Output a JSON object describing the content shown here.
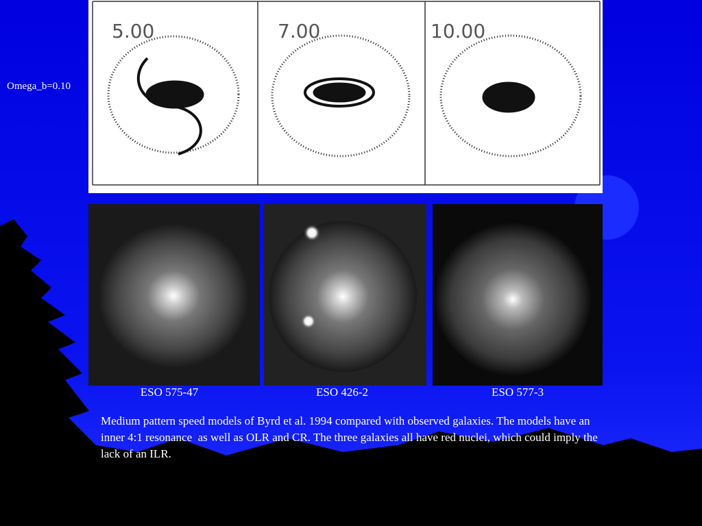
{
  "label": "Omega_b=0.10",
  "simulation_panels": [
    {
      "time": "5.00"
    },
    {
      "time": "7.00"
    },
    {
      "time": "10.00"
    }
  ],
  "galaxies": [
    {
      "name": "ESO 575-47"
    },
    {
      "name": "ESO 426-2"
    },
    {
      "name": "ESO 577-3"
    }
  ],
  "caption": "Medium pattern speed models of Byrd et al. 1994 compared with observed galaxies. The models have an inner 4:1 resonance  as well as OLR and CR. The three galaxies all have red nuclei, which could imply the lack of an ILR."
}
